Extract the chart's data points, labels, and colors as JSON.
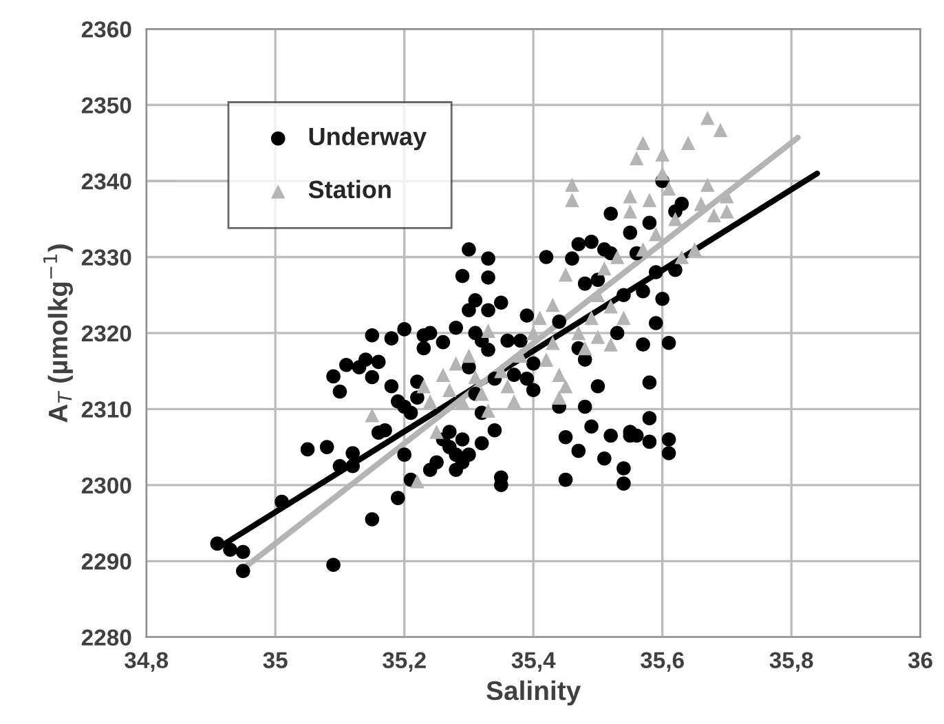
{
  "chart_data": {
    "type": "scatter",
    "xlabel": "Salinity",
    "ylabel": "A$_{T}$ (µmolkg$^{−1}$)",
    "xlim": [
      34.8,
      36
    ],
    "xticks": [
      {
        "value": 34.8,
        "label": "34,8"
      },
      35,
      {
        "value": 35.2,
        "label": "35,2"
      },
      {
        "value": 35.4,
        "label": "35,4"
      },
      {
        "value": 35.6,
        "label": "35,6"
      },
      {
        "value": 35.8,
        "label": "35,8"
      },
      36
    ],
    "ylim": [
      2280,
      2360
    ],
    "yticks": [
      2280,
      2290,
      2300,
      2310,
      2320,
      2330,
      2340,
      2350,
      2360
    ],
    "grid": true,
    "legend": "top left",
    "series": [
      {
        "name": "Underway",
        "marker": "circle",
        "color": "#000000",
        "x": [
          34.91,
          34.93,
          34.95,
          34.95,
          35.01,
          35.05,
          35.08,
          35.09,
          35.09,
          35.1,
          35.1,
          35.11,
          35.12,
          35.12,
          35.13,
          35.14,
          35.15,
          35.15,
          35.15,
          35.16,
          35.16,
          35.17,
          35.18,
          35.18,
          35.19,
          35.19,
          35.2,
          35.2,
          35.2,
          35.21,
          35.21,
          35.22,
          35.22,
          35.23,
          35.23,
          35.24,
          35.24,
          35.25,
          35.26,
          35.26,
          35.27,
          35.27,
          35.28,
          35.28,
          35.28,
          35.29,
          35.29,
          35.29,
          35.3,
          35.3,
          35.3,
          35.3,
          35.31,
          35.31,
          35.31,
          35.32,
          35.32,
          35.32,
          35.33,
          35.33,
          35.33,
          35.33,
          35.34,
          35.34,
          35.35,
          35.35,
          35.35,
          35.36,
          35.37,
          35.38,
          35.39,
          35.39,
          35.4,
          35.4,
          35.42,
          35.44,
          35.44,
          35.45,
          35.45,
          35.46,
          35.47,
          35.47,
          35.47,
          35.48,
          35.48,
          35.48,
          35.49,
          35.49,
          35.5,
          35.5,
          35.51,
          35.51,
          35.52,
          35.52,
          35.52,
          35.53,
          35.54,
          35.54,
          35.54,
          35.55,
          35.55,
          35.55,
          35.56,
          35.56,
          35.57,
          35.57,
          35.58,
          35.58,
          35.58,
          35.58,
          35.59,
          35.59,
          35.6,
          35.6,
          35.61,
          35.61,
          35.61,
          35.62,
          35.62,
          35.63
        ],
        "values": [
          2292.3,
          2291.5,
          2291.2,
          2288.7,
          2297.8,
          2304.7,
          2305,
          2289.5,
          2314.3,
          2312.3,
          2302.5,
          2315.8,
          2304.2,
          2302.5,
          2315.5,
          2316.5,
          2319.7,
          2314.2,
          2295.5,
          2306.9,
          2316.2,
          2307.2,
          2319.3,
          2313,
          2311,
          2298.3,
          2310.3,
          2304,
          2320.5,
          2300.7,
          2309.5,
          2313.6,
          2311.5,
          2319.7,
          2318,
          2320,
          2302,
          2303,
          2318.8,
          2306,
          2307,
          2305,
          2304,
          2320.7,
          2302,
          2306,
          2303,
          2327.5,
          2331,
          2323,
          2315.5,
          2304,
          2324.3,
          2320,
          2312,
          2319,
          2305.5,
          2309.5,
          2329.8,
          2327.3,
          2323,
          2317.8,
          2314,
          2307.2,
          2324,
          2301,
          2300,
          2319,
          2314.5,
          2319,
          2322.3,
          2314,
          2312.5,
          2316,
          2330,
          2310.3,
          2321.5,
          2306.3,
          2300.7,
          2329.8,
          2304.5,
          2318,
          2331.7,
          2326.5,
          2310.3,
          2316.5,
          2332,
          2307.7,
          2313,
          2327,
          2303.5,
          2331,
          2306.5,
          2335.7,
          2330.5,
          2320,
          2302.2,
          2300.2,
          2325,
          2307,
          2333.2,
          2306.5,
          2306.5,
          2330.5,
          2325.5,
          2318.5,
          2313.5,
          2308.8,
          2305.7,
          2334.5,
          2328,
          2321.3,
          2340,
          2324.5,
          2318.7,
          2306,
          2304.2,
          2336,
          2328.3,
          2337
        ]
      },
      {
        "name": "Station",
        "marker": "triangle",
        "color": "#b4b4b4",
        "x": [
          35.15,
          35.22,
          35.23,
          35.24,
          35.25,
          35.26,
          35.27,
          35.28,
          35.29,
          35.3,
          35.31,
          35.32,
          35.33,
          35.33,
          35.35,
          35.36,
          35.37,
          35.38,
          35.4,
          35.41,
          35.42,
          35.43,
          35.43,
          35.44,
          35.44,
          35.45,
          35.45,
          35.46,
          35.46,
          35.47,
          35.48,
          35.49,
          35.5,
          35.5,
          35.51,
          35.52,
          35.52,
          35.53,
          35.54,
          35.55,
          35.55,
          35.56,
          35.57,
          35.57,
          35.58,
          35.59,
          35.6,
          35.6,
          35.61,
          35.62,
          35.63,
          35.64,
          35.65,
          35.66,
          35.67,
          35.67,
          35.68,
          35.69,
          35.7,
          35.7
        ],
        "values": [
          2309.2,
          2300.5,
          2313,
          2311,
          2307,
          2314.5,
          2312.5,
          2316,
          2311,
          2317,
          2314.2,
          2312,
          2320.3,
          2309.8,
          2315,
          2313,
          2311,
          2317,
          2320,
          2322,
          2316.5,
          2318.7,
          2323.7,
          2311.5,
          2314.5,
          2327.7,
          2313,
          2339.5,
          2337.5,
          2320,
          2318,
          2322,
          2325,
          2319.5,
          2328.5,
          2318.5,
          2323.5,
          2330,
          2322,
          2338,
          2336,
          2343,
          2345,
          2331,
          2337.5,
          2333,
          2343.5,
          2341,
          2339,
          2335,
          2330,
          2345,
          2331,
          2337,
          2339.5,
          2348.3,
          2335.5,
          2346.7,
          2338,
          2336
        ]
      },
      {
        "type": "line",
        "color": "#000000",
        "x": [
          34.92,
          35.84
        ],
        "values": [
          2292.2,
          2341
        ]
      },
      {
        "type": "line",
        "color": "#b4b4b4",
        "x": [
          34.95,
          35.81
        ],
        "values": [
          2289,
          2345.7
        ]
      }
    ]
  }
}
